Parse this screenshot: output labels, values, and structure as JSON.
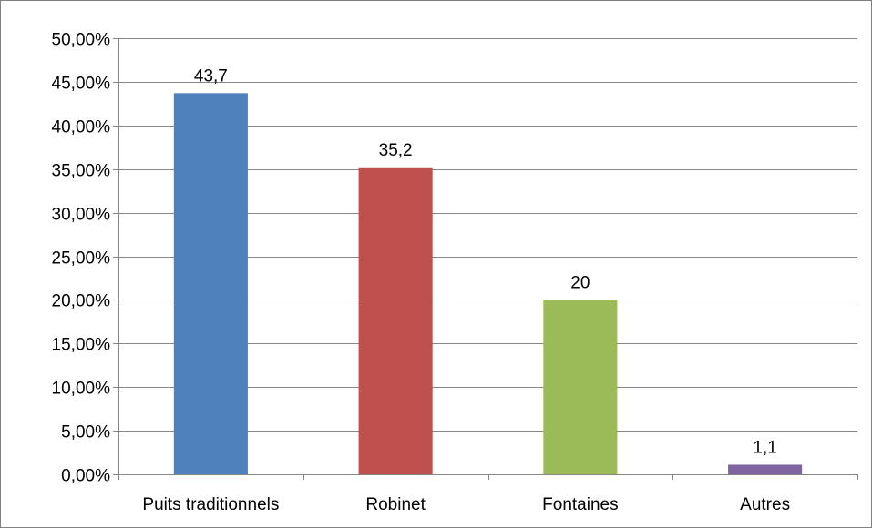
{
  "chart_data": {
    "type": "bar",
    "categories": [
      "Puits traditionnels",
      "Robinet",
      "Fontaines",
      "Autres"
    ],
    "values": [
      43.7,
      35.2,
      20,
      1.1
    ],
    "data_labels": [
      "43,7",
      "35,2",
      "20",
      "1,1"
    ],
    "ylim": [
      0,
      50
    ],
    "yticks": [
      0,
      5,
      10,
      15,
      20,
      25,
      30,
      35,
      40,
      45,
      50
    ],
    "ytick_labels": [
      "0,00%",
      "5,00%",
      "10,00%",
      "15,00%",
      "20,00%",
      "25,00%",
      "30,00%",
      "35,00%",
      "40,00%",
      "45,00%",
      "50,00%"
    ],
    "colors": [
      "#4f81bd",
      "#c0504d",
      "#9bbb59",
      "#8064a2"
    ],
    "grid": true,
    "legend": "none",
    "title": "",
    "xlabel": "",
    "ylabel": ""
  }
}
